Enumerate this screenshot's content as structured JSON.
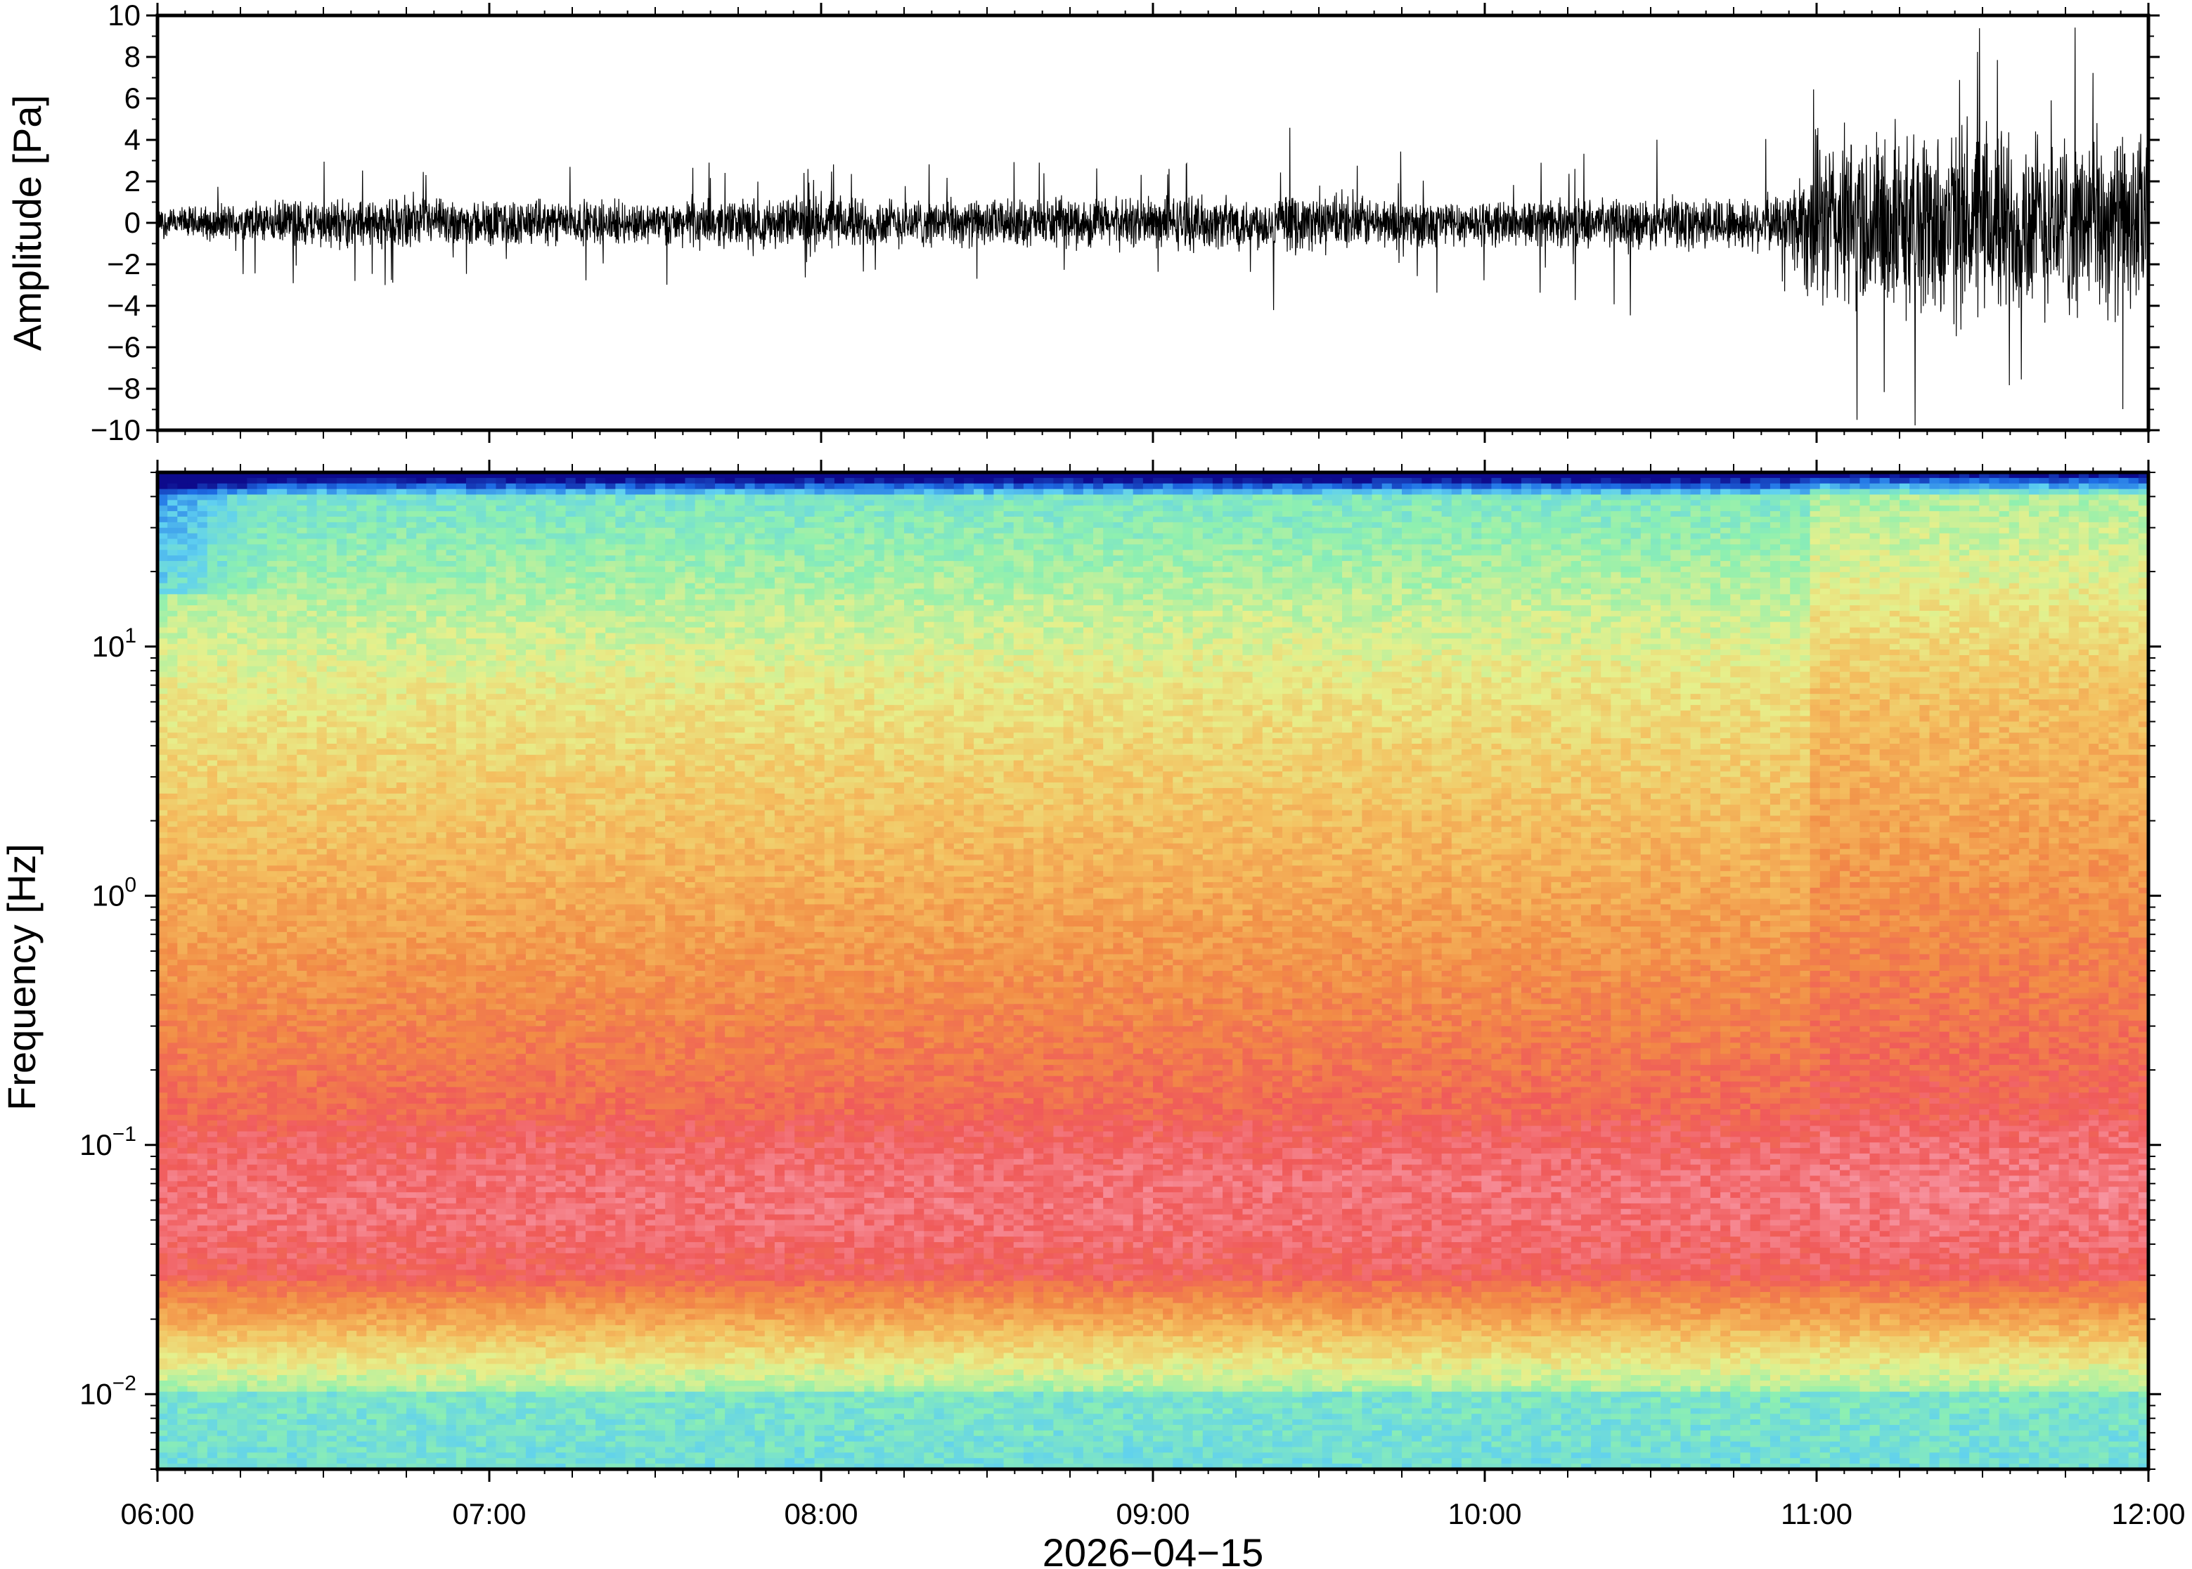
{
  "chart_data": [
    {
      "type": "line",
      "panel": "waveform",
      "ylabel": "Amplitude [Pa]",
      "ylim": [
        -10,
        10
      ],
      "yticks": [
        10,
        8,
        6,
        4,
        2,
        0,
        -2,
        -4,
        -6,
        -8,
        -10
      ],
      "ytick_labels": [
        "10",
        "8",
        "6",
        "4",
        "2",
        "0",
        "−2",
        "−4",
        "−6",
        "−8",
        "−10"
      ],
      "xlim": [
        "06:00",
        "12:00"
      ],
      "envelope": {
        "x_hours": [
          6.0,
          6.5,
          7.0,
          7.5,
          8.0,
          8.5,
          9.0,
          9.5,
          10.0,
          10.5,
          10.9,
          11.0,
          11.5,
          12.0
        ],
        "typical_peak": [
          0.8,
          1.4,
          1.3,
          1.2,
          1.5,
          1.3,
          1.5,
          1.5,
          1.3,
          1.4,
          1.6,
          5.0,
          5.5,
          5.0
        ],
        "max_peak": [
          1.5,
          3.5,
          3.0,
          3.0,
          3.0,
          3.0,
          3.0,
          5.0,
          3.0,
          5.0,
          4.5,
          10,
          10,
          10
        ]
      },
      "grid": false,
      "color": "#000000"
    },
    {
      "type": "heatmap",
      "panel": "spectrogram",
      "ylabel": "Frequency [Hz]",
      "yscale": "log",
      "ylim": [
        0.005,
        50
      ],
      "yticks": [
        {
          "base": "10",
          "exp": "−2",
          "value": 0.01
        },
        {
          "base": "10",
          "exp": "−1",
          "value": 0.1
        },
        {
          "base": "10",
          "exp": "0",
          "value": 1
        },
        {
          "base": "10",
          "exp": "1",
          "value": 10
        }
      ],
      "xlim": [
        "06:00",
        "12:00"
      ],
      "xticks": [
        "06:00",
        "07:00",
        "08:00",
        "09:00",
        "10:00",
        "11:00",
        "12:00"
      ],
      "xlabel": "2026−04−15",
      "colormap": [
        "#0d0a8c",
        "#1e6fe6",
        "#5fd0f0",
        "#8ef0b0",
        "#e6f08c",
        "#f4c060",
        "#f28c46",
        "#f05a5a",
        "#f89aa8"
      ],
      "grid": false
    }
  ]
}
